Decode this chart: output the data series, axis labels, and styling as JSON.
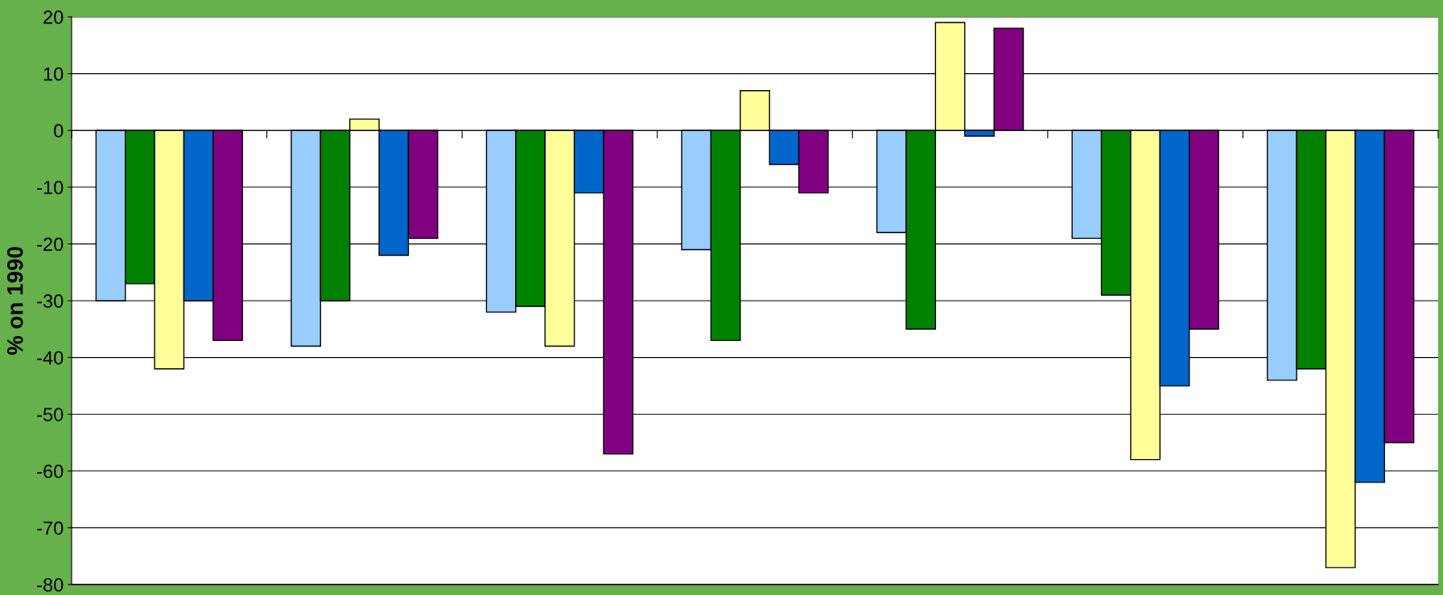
{
  "chart_data": {
    "type": "bar",
    "ylabel": "% on 1990",
    "categories": [
      null,
      null,
      null,
      null,
      null,
      null,
      null
    ],
    "series": [
      {
        "color": "#99ccff",
        "values": [
          -30,
          -38,
          -32,
          -21,
          -18,
          -19,
          -44
        ]
      },
      {
        "color": "#008000",
        "values": [
          -27,
          -30,
          -31,
          -37,
          -35,
          -29,
          -42
        ]
      },
      {
        "color": "#ffff99",
        "values": [
          -42,
          2,
          -38,
          7,
          19,
          -58,
          -77
        ]
      },
      {
        "color": "#0066cc",
        "values": [
          -30,
          -22,
          -11,
          -6,
          -1,
          -45,
          -62
        ]
      },
      {
        "color": "#800080",
        "values": [
          -37,
          -19,
          -57,
          -11,
          18,
          -35,
          -55
        ]
      }
    ],
    "ylim": [
      -80,
      20
    ],
    "yticks": [
      -80,
      -70,
      -60,
      -50,
      -40,
      -30,
      -20,
      -10,
      0,
      10,
      20
    ],
    "grid": "y"
  }
}
